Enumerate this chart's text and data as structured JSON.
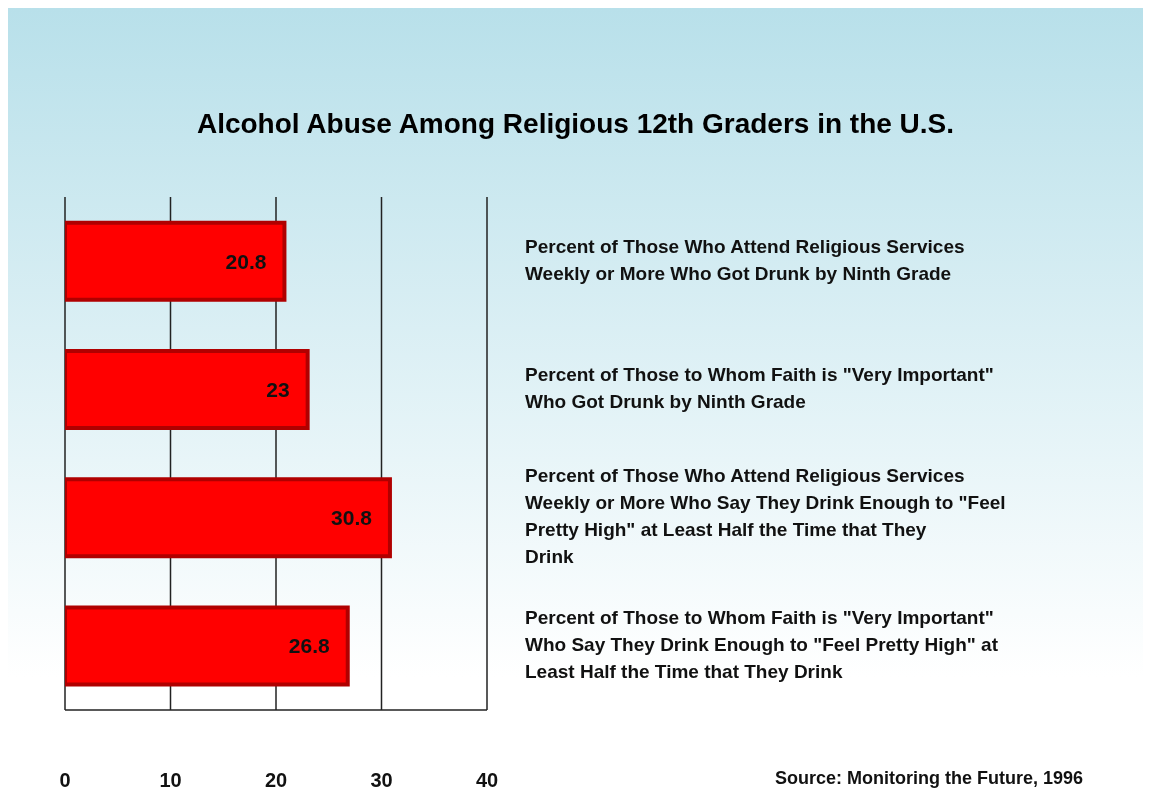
{
  "chart_data": {
    "type": "bar",
    "orientation": "horizontal",
    "title": "Alcohol Abuse Among Religious 12th Graders in the U.S.",
    "categories": [
      "Percent of Those Who Attend Religious Services Weekly or More Who Got Drunk by Ninth Grade",
      "Percent of Those to Whom Faith is \"Very Important\" Who Got Drunk by Ninth Grade",
      "Percent of Those Who Attend Religious Services Weekly or More Who Say They Drink Enough to \"Feel Pretty High\" at Least Half the Time that They Drink",
      "Percent of Those to Whom Faith is \"Very Important\" Who Say They Drink Enough to \"Feel Pretty High\" at Least Half the Time that They Drink"
    ],
    "values": [
      20.8,
      23,
      30.8,
      26.8
    ],
    "color": "#ff0000",
    "data_labels": true,
    "xlim": [
      0,
      40
    ],
    "xticks": [
      0,
      10,
      20,
      30,
      40
    ],
    "grid": "x",
    "annotations": [
      "Source: Monitoring the Future, 1996"
    ]
  }
}
